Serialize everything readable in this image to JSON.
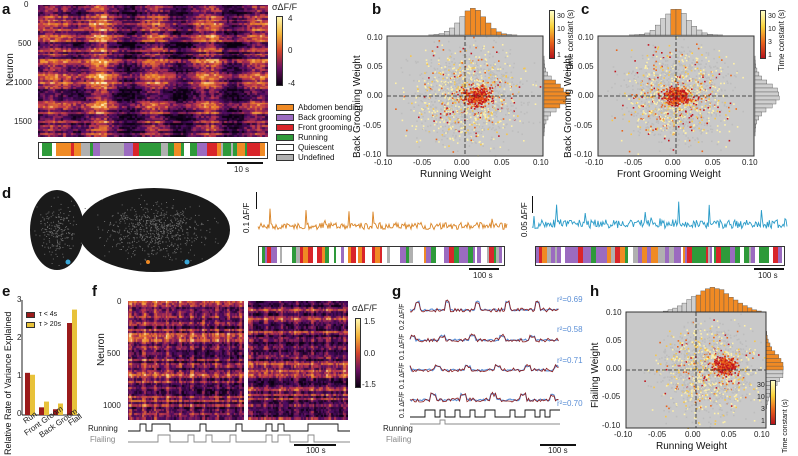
{
  "panels": {
    "a": {
      "label": "a",
      "ylabel": "Neuron",
      "yticks": [
        "0",
        "500",
        "1000",
        "1500"
      ],
      "cbar_symbol": "σΔF/F",
      "cbar_ticks": [
        "4",
        "0",
        "-4"
      ],
      "scalebar": "10 s",
      "legend": [
        {
          "label": "Abdomen bending",
          "color": "#f08a24"
        },
        {
          "label": "Back grooming",
          "color": "#9b6bc0"
        },
        {
          "label": "Front grooming",
          "color": "#d9252a"
        },
        {
          "label": "Running",
          "color": "#2e9a3a"
        },
        {
          "label": "Quiescent",
          "color": "#ffffff"
        },
        {
          "label": "Undefined",
          "color": "#b0b0b0"
        }
      ]
    },
    "b": {
      "label": "b",
      "xlabel": "Running Weight",
      "ylabel": "Back Grooming Weight",
      "xticks": [
        "-0.10",
        "-0.05",
        "0.00",
        "0.05",
        "0.10"
      ],
      "yticks": [
        "0.10",
        "0.05",
        "0.00",
        "-0.05",
        "-0.10"
      ],
      "cbar_label": "Time constant (s)",
      "cbar_ticks": [
        "30",
        "10",
        "3",
        "1"
      ]
    },
    "c": {
      "label": "c",
      "xlabel": "Front Grooming Weight",
      "ylabel": "Back Grooming Weight",
      "xticks": [
        "-0.10",
        "-0.05",
        "0.00",
        "0.05",
        "0.10"
      ],
      "yticks": [
        "0.10",
        "0.05",
        "0.00",
        "-0.05",
        "-0.10"
      ],
      "cbar_label": "Time constant (s)",
      "cbar_ticks": [
        "30",
        "10",
        "3",
        "1"
      ]
    },
    "d": {
      "label": "d",
      "trace1_scale": "0.1 ΔF/F",
      "trace2_scale": "0.05 ΔF/F",
      "time_scale1": "100 s",
      "time_scale2": "100 s"
    },
    "e": {
      "label": "e",
      "ylabel": "Relative Rate of Variance Explained",
      "yticks": [
        "3",
        "2",
        "1",
        "0"
      ],
      "categories": [
        "Run",
        "Front Groom",
        "Back Groom",
        "Flail"
      ],
      "legend": [
        {
          "label": "τ < 4s",
          "color": "#9b1b1b"
        },
        {
          "label": "τ > 20s",
          "color": "#e8c23a"
        }
      ]
    },
    "f": {
      "label": "f",
      "ylabel": "Neuron",
      "yticks": [
        "0",
        "500",
        "1000"
      ],
      "cbar_symbol": "σΔF/F",
      "cbar_ticks": [
        "1.5",
        "0.0",
        "-1.5"
      ],
      "row_labels": [
        "Running",
        "Flailing"
      ],
      "scalebar": "100 s"
    },
    "g": {
      "label": "g",
      "scales": [
        "0.2 ΔF/F",
        "0.1 ΔF/F",
        "0.1 ΔF/F",
        "0.1 ΔF/F"
      ],
      "r2": [
        "r²=0.69",
        "r²=0.58",
        "r²=0.71",
        "r²=0.70"
      ],
      "row_labels": [
        "Running",
        "Flailing"
      ],
      "scalebar": "100 s"
    },
    "h": {
      "label": "h",
      "xlabel": "Running Weight",
      "ylabel": "Flailing Weight",
      "xticks": [
        "-0.10",
        "-0.05",
        "0.00",
        "0.05",
        "0.10"
      ],
      "yticks": [
        "0.10",
        "0.05",
        "0.00",
        "-0.05",
        "-0.10"
      ],
      "cbar_label": "Time constant (s)",
      "cbar_ticks": [
        "30",
        "10",
        "3",
        "1"
      ]
    }
  },
  "chart_data": [
    {
      "type": "heatmap",
      "title": "",
      "ylabel": "Neuron",
      "ylim": [
        0,
        1700
      ],
      "clim": [
        -4,
        4
      ],
      "colorbar_label": "σΔF/F"
    },
    {
      "type": "scatter",
      "xlabel": "Running Weight",
      "ylabel": "Back Grooming Weight",
      "xlim": [
        -0.1,
        0.1
      ],
      "ylim": [
        -0.1,
        0.1
      ],
      "colorbar_label": "Time constant (s)",
      "colorbar_ticks": [
        1,
        3,
        10,
        30
      ]
    },
    {
      "type": "scatter",
      "xlabel": "Front Grooming Weight",
      "ylabel": "Back Grooming Weight",
      "xlim": [
        -0.1,
        0.1
      ],
      "ylim": [
        -0.1,
        0.1
      ],
      "colorbar_label": "Time constant (s)",
      "colorbar_ticks": [
        1,
        3,
        10,
        30
      ]
    },
    {
      "type": "bar",
      "ylabel": "Relative Rate of Variance Explained",
      "categories": [
        "Run",
        "Front Groom",
        "Back Groom",
        "Flail"
      ],
      "series": [
        {
          "name": "τ < 4s",
          "values": [
            1.1,
            0.2,
            0.15,
            2.4
          ]
        },
        {
          "name": "τ > 20s",
          "values": [
            1.05,
            0.35,
            0.3,
            2.75
          ]
        }
      ],
      "ylim": [
        0,
        3
      ]
    },
    {
      "type": "heatmap",
      "ylabel": "Neuron",
      "ylim": [
        0,
        1150
      ],
      "clim": [
        -1.5,
        1.5
      ],
      "colorbar_label": "σΔF/F"
    },
    {
      "type": "scatter",
      "xlabel": "Running Weight",
      "ylabel": "Flailing Weight",
      "xlim": [
        -0.1,
        0.1
      ],
      "ylim": [
        -0.1,
        0.1
      ],
      "colorbar_label": "Time constant (s)",
      "colorbar_ticks": [
        1,
        3,
        10,
        30
      ]
    }
  ]
}
